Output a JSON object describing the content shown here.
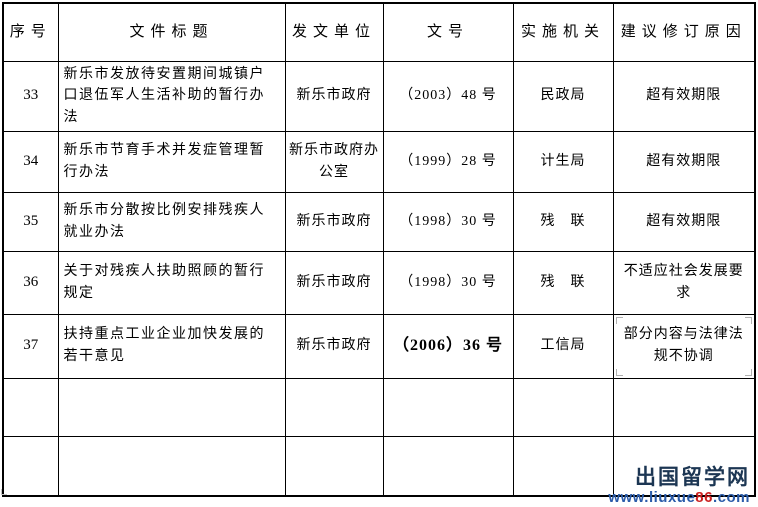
{
  "table": {
    "headers": {
      "serial": "序号",
      "title": "文件标题",
      "unit": "发文单位",
      "doc_no": "文号",
      "agency": "实施机关",
      "reason": "建议修订原因"
    },
    "rows": [
      {
        "no": "33",
        "title": "新乐市发放待安置期间城镇户口退伍军人生活补助的暂行办法",
        "unit": "新乐市政府",
        "doc_no": "（2003）48 号",
        "agency": "民政局",
        "reason": "超有效期限"
      },
      {
        "no": "34",
        "title": "新乐市节育手术并发症管理暂行办法",
        "unit": "新乐市政府办公室",
        "doc_no": "（1999）28 号",
        "agency": "计生局",
        "reason": "超有效期限"
      },
      {
        "no": "35",
        "title": "新乐市分散按比例安排残疾人就业办法",
        "unit": "新乐市政府",
        "doc_no": "（1998）30 号",
        "agency": "残　联",
        "reason": "超有效期限"
      },
      {
        "no": "36",
        "title": "关于对残疾人扶助照顾的暂行规定",
        "unit": "新乐市政府",
        "doc_no": "（1998）30 号",
        "agency": "残　联",
        "reason": "不适应社会发展要求"
      },
      {
        "no": "37",
        "title": "扶持重点工业企业加快发展的若干意见",
        "unit": "新乐市政府",
        "doc_no": "（2006）36 号",
        "agency": "工信局",
        "reason": "部分内容与法律法规不协调"
      }
    ],
    "empty_row_count": 2
  },
  "watermark": {
    "site_name": "出国留学网",
    "url_prefix": "www.liuxue",
    "url_highlight": "86",
    "url_suffix": ".com",
    "site_color": "#1c3653",
    "url_color": "#2b5caa",
    "highlight_color": "#cc2222"
  }
}
